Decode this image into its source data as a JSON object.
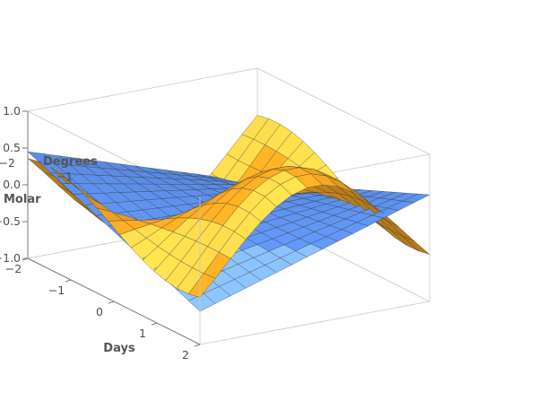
{
  "chart_data": {
    "type": "surface3d",
    "title": "",
    "xlabel": "Days",
    "ylabel": "Degrees",
    "zlabel": "Molar",
    "xlim": [
      -2,
      2
    ],
    "ylim": [
      -2,
      2
    ],
    "zlim": [
      -1,
      1
    ],
    "x_ticks": [
      "−2",
      "−1",
      "0",
      "1",
      "2"
    ],
    "y_ticks": [
      "−2",
      "−1"
    ],
    "z_ticks": [
      "−1.0",
      "−0.5",
      "0.0",
      "0.5",
      "1.0"
    ],
    "grid_divisions": 15,
    "series": [
      {
        "expression": "sin(x) * cos(y) * 0.95",
        "color": "#f5a623"
      },
      {
        "expression": "0.5 * (x * y) / 4 - 0.05",
        "color": "#5b8de6"
      }
    ]
  }
}
